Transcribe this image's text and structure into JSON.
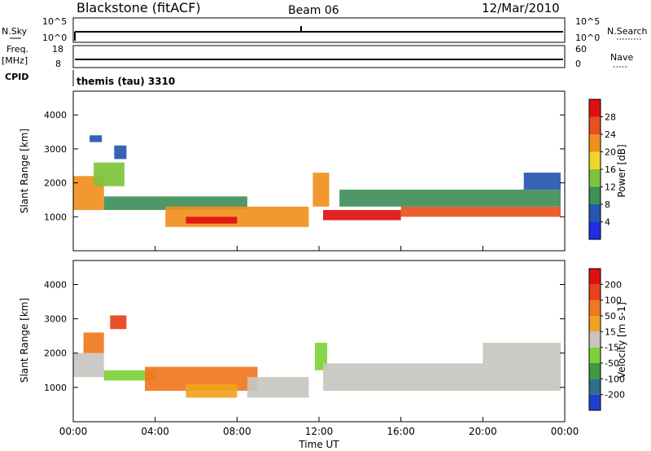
{
  "header": {
    "station": "Blackstone (fitACF)",
    "beam": "Beam 06",
    "date": "12/Mar/2010"
  },
  "panels": {
    "nsky_label": "N.Sky",
    "nsky_top": "10^5",
    "nsky_bottom": "10^0",
    "nsearch_label": "N.Search",
    "nsearch_top": "10^5",
    "nsearch_bottom": "10^0",
    "freq_label_1": "Freq.",
    "freq_label_2": "[MHz]",
    "freq_top": "18",
    "freq_bottom": "8",
    "nave_label": "Nave",
    "nave_top": "60",
    "nave_bottom": "0",
    "cpid_label": "CPID",
    "cpid_value": "themis (tau) 3310"
  },
  "chart_data": [
    {
      "type": "heatmap",
      "name": "power",
      "ylabel": "Slant Range [km]",
      "yticks": [
        1000,
        2000,
        3000,
        4000
      ],
      "ylim": [
        0,
        4700
      ],
      "xticks": [
        "00:00",
        "04:00",
        "08:00",
        "12:00",
        "16:00",
        "20:00",
        "00:00"
      ],
      "xlim_hours": [
        0,
        24
      ],
      "colorbar": {
        "label": "Power [dB]",
        "ticks": [
          "4",
          "8",
          "12",
          "16",
          "20",
          "24",
          "28"
        ],
        "colors": [
          "#1f2ee6",
          "#2755b0",
          "#3f8f5a",
          "#7ec33c",
          "#f2d52c",
          "#f0901e",
          "#e8501e",
          "#e01010"
        ]
      },
      "bands": [
        {
          "t": [
            0.0,
            1.5
          ],
          "r": [
            1200,
            2200
          ],
          "level": 5
        },
        {
          "t": [
            1.0,
            2.5
          ],
          "r": [
            1900,
            2600
          ],
          "level": 3
        },
        {
          "t": [
            0.8,
            1.4
          ],
          "r": [
            3200,
            3400
          ],
          "level": 1
        },
        {
          "t": [
            2.0,
            2.6
          ],
          "r": [
            2700,
            3100
          ],
          "level": 1
        },
        {
          "t": [
            1.5,
            8.5
          ],
          "r": [
            1200,
            1600
          ],
          "level": 2
        },
        {
          "t": [
            4.5,
            11.5
          ],
          "r": [
            700,
            1300
          ],
          "level": 5
        },
        {
          "t": [
            5.5,
            8.0
          ],
          "r": [
            800,
            1000
          ],
          "level": 7
        },
        {
          "t": [
            11.7,
            12.5
          ],
          "r": [
            1300,
            2300
          ],
          "level": 5
        },
        {
          "t": [
            12.2,
            16.0
          ],
          "r": [
            900,
            1200
          ],
          "level": 7
        },
        {
          "t": [
            16.0,
            23.8
          ],
          "r": [
            1000,
            1300
          ],
          "level": 6
        },
        {
          "t": [
            13.0,
            23.8
          ],
          "r": [
            1300,
            1800
          ],
          "level": 2
        },
        {
          "t": [
            22.0,
            23.8
          ],
          "r": [
            1800,
            2300
          ],
          "level": 1
        }
      ]
    },
    {
      "type": "heatmap",
      "name": "velocity",
      "ylabel": "Slant Range [km]",
      "yticks": [
        1000,
        2000,
        3000,
        4000
      ],
      "ylim": [
        0,
        4700
      ],
      "xticks": [
        "00:00",
        "04:00",
        "08:00",
        "12:00",
        "16:00",
        "20:00",
        "00:00"
      ],
      "xlabel": "Time UT",
      "colorbar": {
        "label": "Velocity [m s-1]",
        "ticks": [
          "200",
          "100",
          "50",
          "15",
          "-15",
          "-50",
          "-100",
          "-200"
        ],
        "colors": [
          "#1f3fcc",
          "#2e6e8a",
          "#3f9a3f",
          "#7ed13a",
          "#c8c6bf",
          "#f2a21e",
          "#f0781e",
          "#e8401a",
          "#e01010"
        ]
      },
      "bands": [
        {
          "t": [
            0.0,
            1.5
          ],
          "r": [
            1300,
            2000
          ],
          "level": 4
        },
        {
          "t": [
            0.5,
            1.5
          ],
          "r": [
            2000,
            2600
          ],
          "level": 6
        },
        {
          "t": [
            1.8,
            2.6
          ],
          "r": [
            2700,
            3100
          ],
          "level": 7
        },
        {
          "t": [
            1.5,
            4.0
          ],
          "r": [
            1200,
            1500
          ],
          "level": 3
        },
        {
          "t": [
            3.5,
            9.0
          ],
          "r": [
            900,
            1600
          ],
          "level": 6
        },
        {
          "t": [
            5.5,
            8.0
          ],
          "r": [
            700,
            1100
          ],
          "level": 5
        },
        {
          "t": [
            8.5,
            11.5
          ],
          "r": [
            700,
            1300
          ],
          "level": 4
        },
        {
          "t": [
            11.8,
            12.4
          ],
          "r": [
            1500,
            2300
          ],
          "level": 3
        },
        {
          "t": [
            12.2,
            23.8
          ],
          "r": [
            900,
            1700
          ],
          "level": 4
        },
        {
          "t": [
            20.0,
            23.8
          ],
          "r": [
            1700,
            2300
          ],
          "level": 4
        }
      ]
    }
  ]
}
